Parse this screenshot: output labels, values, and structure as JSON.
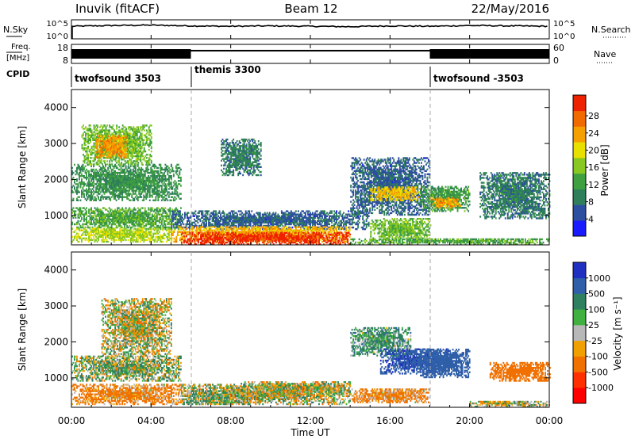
{
  "header": {
    "station": "Inuvik (fitACF)",
    "beam": "Beam 12",
    "date": "22/May/2016"
  },
  "nsky_panel": {
    "left_label": "N.Sky",
    "right_label": "N.Search",
    "left_ticks": [
      "10^5",
      "10^0"
    ],
    "right_ticks": [
      "10^5",
      "10^0"
    ]
  },
  "freq_panel": {
    "left_label_1": "Freq.",
    "left_label_2": "[MHz]",
    "right_label": "Nave",
    "left_ticks": [
      "18",
      "8"
    ],
    "right_ticks": [
      "60",
      "0"
    ]
  },
  "cpid": {
    "label": "CPID",
    "segments": [
      {
        "name": "twofsound 3503",
        "start_hour": 0
      },
      {
        "name": "themis 3300",
        "start_hour": 6
      },
      {
        "name": "twofsound -3503",
        "start_hour": 18
      }
    ]
  },
  "time_axis": {
    "label": "Time UT",
    "ticks": [
      "00:00",
      "04:00",
      "08:00",
      "12:00",
      "16:00",
      "20:00",
      "00:00"
    ]
  },
  "power_panel": {
    "ylabel": "Slant Range [km]",
    "yticks": [
      "1000",
      "2000",
      "3000",
      "4000"
    ],
    "colorbar_label": "Power [dB]",
    "colorbar_ticks": [
      "4",
      "8",
      "12",
      "16",
      "20",
      "24",
      "28"
    ],
    "colors": [
      "#1a1aff",
      "#2d4fa0",
      "#2f7f5a",
      "#3fa040",
      "#88c820",
      "#e8e000",
      "#f5a000",
      "#f06a00",
      "#ee2200"
    ]
  },
  "velocity_panel": {
    "ylabel": "Slant Range [km]",
    "yticks": [
      "1000",
      "2000",
      "3000",
      "4000"
    ],
    "colorbar_label": "Velocity [m s⁻¹]",
    "colorbar_ticks": [
      "1000",
      "500",
      "100",
      "25",
      "-25",
      "-100",
      "-500",
      "-1000"
    ],
    "colors": [
      "#2030c0",
      "#2f5fa8",
      "#2f8060",
      "#40b040",
      "#b8b8b8",
      "#f0a000",
      "#f07000",
      "#ff3000",
      "#ff0000"
    ]
  },
  "chart_data": [
    {
      "type": "line",
      "title": "N.Sky / N.Search",
      "x_unit": "hour UT",
      "xlim": [
        0,
        24
      ],
      "series": [
        {
          "name": "N.Sky",
          "x": [
            0,
            2,
            4,
            6,
            8,
            10,
            12,
            14,
            16,
            18,
            20,
            22,
            24
          ],
          "values": [
            3.3,
            3.5,
            3.6,
            3.4,
            3.3,
            3.4,
            3.3,
            3.2,
            3.4,
            3.3,
            3.5,
            3.4,
            3.3
          ]
        },
        {
          "name": "N.Search",
          "x": [
            16,
            18
          ],
          "values": [
            3.4,
            3.5
          ]
        }
      ]
    },
    {
      "type": "line",
      "title": "Freq. / Nave",
      "x_unit": "hour UT",
      "xlim": [
        0,
        24
      ],
      "ylim": [
        8,
        18
      ],
      "series": [
        {
          "name": "Freq. band (alternating)",
          "x": [
            0,
            6
          ],
          "values": [
            13,
            13
          ]
        },
        {
          "name": "Freq. (themis)",
          "x": [
            6,
            18
          ],
          "values": [
            14.7,
            14.7
          ]
        },
        {
          "name": "Freq. band (alternating)",
          "x": [
            18,
            24
          ],
          "values": [
            13,
            13
          ]
        }
      ]
    },
    {
      "type": "heatmap",
      "title": "Power [dB]",
      "x_unit": "hour UT",
      "y_unit": "km",
      "xlim": [
        0,
        24
      ],
      "ylim": [
        180,
        4500
      ],
      "zlim": [
        0,
        30
      ],
      "regions": [
        {
          "t": [
            0.0,
            5.5
          ],
          "r": [
            1400,
            2400
          ],
          "v": 10
        },
        {
          "t": [
            0.5,
            4.0
          ],
          "r": [
            2400,
            3500
          ],
          "v": 14
        },
        {
          "t": [
            1.2,
            2.8
          ],
          "r": [
            2600,
            3200
          ],
          "v": 22
        },
        {
          "t": [
            0.0,
            5.5
          ],
          "r": [
            600,
            1200
          ],
          "v": 12
        },
        {
          "t": [
            0.0,
            5.0
          ],
          "r": [
            250,
            650
          ],
          "v": 16
        },
        {
          "t": [
            5.0,
            15.0
          ],
          "r": [
            600,
            1100
          ],
          "v": 6
        },
        {
          "t": [
            5.0,
            14.0
          ],
          "r": [
            250,
            700
          ],
          "v": 21
        },
        {
          "t": [
            5.5,
            14.0
          ],
          "r": [
            180,
            500
          ],
          "v": 28
        },
        {
          "t": [
            7.5,
            9.5
          ],
          "r": [
            2100,
            3100
          ],
          "v": 8
        },
        {
          "t": [
            14.0,
            18.0
          ],
          "r": [
            1000,
            2600
          ],
          "v": 6
        },
        {
          "t": [
            15.0,
            17.5
          ],
          "r": [
            1400,
            1800
          ],
          "v": 20
        },
        {
          "t": [
            15.0,
            18.0
          ],
          "r": [
            300,
            900
          ],
          "v": 14
        },
        {
          "t": [
            17.5,
            20.0
          ],
          "r": [
            1100,
            1800
          ],
          "v": 11
        },
        {
          "t": [
            18.0,
            19.5
          ],
          "r": [
            1200,
            1500
          ],
          "v": 22
        },
        {
          "t": [
            20.5,
            24.0
          ],
          "r": [
            900,
            2200
          ],
          "v": 8
        },
        {
          "t": [
            14.0,
            24.0
          ],
          "r": [
            180,
            350
          ],
          "v": 12
        }
      ]
    },
    {
      "type": "heatmap",
      "title": "Velocity [m s⁻¹]",
      "x_unit": "hour UT",
      "y_unit": "km",
      "xlim": [
        0,
        24
      ],
      "ylim": [
        180,
        4500
      ],
      "zlim": [
        -1000,
        1000
      ],
      "regions": [
        {
          "t": [
            1.5,
            5.0
          ],
          "r": [
            1600,
            3200
          ],
          "v": 0
        },
        {
          "t": [
            0.0,
            5.5
          ],
          "r": [
            900,
            1600
          ],
          "v": 60
        },
        {
          "t": [
            0.0,
            5.5
          ],
          "r": [
            250,
            800
          ],
          "v": -150
        },
        {
          "t": [
            5.5,
            14.0
          ],
          "r": [
            250,
            800
          ],
          "v": 0
        },
        {
          "t": [
            5.5,
            9.0
          ],
          "r": [
            250,
            650
          ],
          "v": 60
        },
        {
          "t": [
            8.5,
            14.0
          ],
          "r": [
            500,
            900
          ],
          "v": 0
        },
        {
          "t": [
            14.0,
            17.0
          ],
          "r": [
            1600,
            2400
          ],
          "v": 150
        },
        {
          "t": [
            15.5,
            19.0
          ],
          "r": [
            1100,
            1800
          ],
          "v": 700
        },
        {
          "t": [
            17.5,
            20.0
          ],
          "r": [
            1000,
            1800
          ],
          "v": 500
        },
        {
          "t": [
            14.0,
            18.0
          ],
          "r": [
            300,
            700
          ],
          "v": -150
        },
        {
          "t": [
            21.0,
            24.0
          ],
          "r": [
            900,
            1400
          ],
          "v": -300
        },
        {
          "t": [
            20.0,
            24.0
          ],
          "r": [
            180,
            350
          ],
          "v": 0
        }
      ]
    }
  ]
}
